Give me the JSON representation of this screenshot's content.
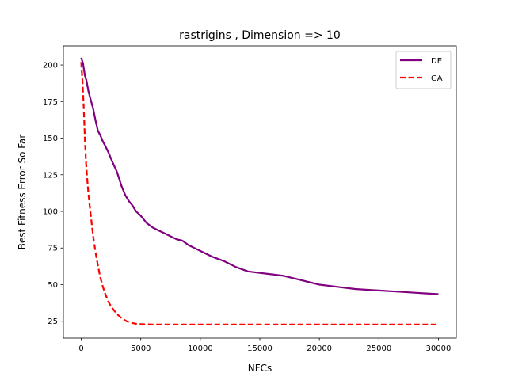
{
  "chart_data": {
    "type": "line",
    "title": "rastrigins , Dimension => 10",
    "xlabel": "NFCs",
    "ylabel": "Best Fitness Error So Far",
    "xlim": [
      -1500,
      31500
    ],
    "ylim": [
      13.5,
      213
    ],
    "xticks": [
      0,
      5000,
      10000,
      15000,
      20000,
      25000,
      30000
    ],
    "yticks": [
      25,
      50,
      75,
      100,
      125,
      150,
      175,
      200
    ],
    "grid": false,
    "legend_position": "top-right",
    "series": [
      {
        "name": "DE",
        "color": "#800080",
        "style": "solid",
        "x": [
          0,
          150,
          300,
          450,
          600,
          800,
          1000,
          1200,
          1400,
          1600,
          1800,
          2000,
          2300,
          2600,
          3000,
          3400,
          3700,
          4000,
          4300,
          4600,
          5000,
          5500,
          6000,
          6500,
          7000,
          7500,
          8000,
          8500,
          9000,
          9500,
          10000,
          11000,
          12000,
          13000,
          14000,
          15000,
          16000,
          17000,
          18000,
          19000,
          20000,
          21000,
          22000,
          23000,
          24000,
          25000,
          26000,
          27000,
          28000,
          29000,
          30000
        ],
        "y": [
          205,
          201,
          193,
          189,
          182,
          176,
          170,
          162,
          155,
          152,
          148,
          145,
          140,
          134,
          127,
          117,
          111,
          107,
          104,
          100,
          97,
          92,
          89,
          87,
          85,
          83,
          81,
          80,
          77,
          75,
          73,
          69,
          66,
          62,
          59,
          58,
          57,
          56,
          54,
          52,
          50,
          49,
          48,
          47,
          46.5,
          46,
          45.5,
          45,
          44.5,
          44,
          43.5
        ]
      },
      {
        "name": "GA",
        "color": "#ff0000",
        "style": "dashed",
        "x": [
          0,
          100,
          200,
          300,
          400,
          500,
          600,
          800,
          1000,
          1200,
          1400,
          1600,
          1800,
          2000,
          2300,
          2600,
          3000,
          3400,
          3800,
          4200,
          4600,
          5000,
          6000,
          8000,
          10000,
          15000,
          20000,
          25000,
          30000
        ],
        "y": [
          202,
          190,
          172,
          150,
          133,
          122,
          112,
          97,
          83,
          72,
          63,
          55,
          49,
          44,
          38,
          34,
          30,
          27,
          25,
          24,
          23.3,
          23,
          22.8,
          22.8,
          22.8,
          22.8,
          22.8,
          22.8,
          22.8
        ]
      }
    ]
  }
}
